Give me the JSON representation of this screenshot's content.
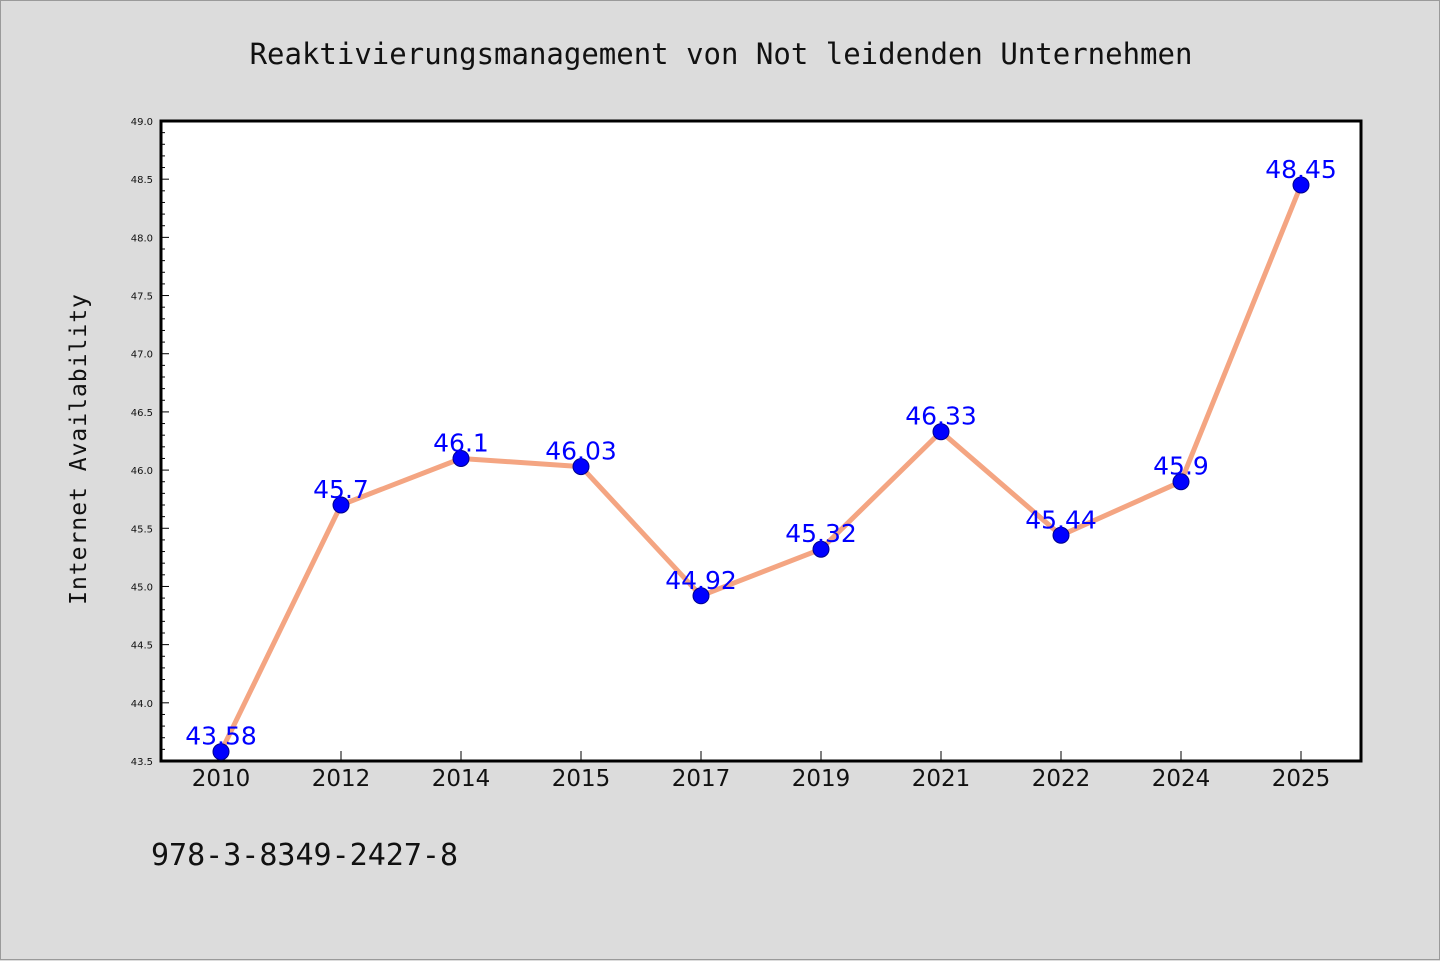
{
  "chart_data": {
    "type": "line",
    "title": "Reaktivierungsmanagement von Not leidenden Unternehmen",
    "xlabel": "",
    "ylabel": "Internet Availability",
    "categories": [
      "2010",
      "2012",
      "2014",
      "2015",
      "2017",
      "2019",
      "2021",
      "2022",
      "2024",
      "2025"
    ],
    "series": [
      {
        "values": [
          43.58,
          45.7,
          46.1,
          46.03,
          44.92,
          45.32,
          46.33,
          45.44,
          45.9,
          48.45
        ],
        "data_labels": [
          "43.58",
          "45.7",
          "46.1",
          "46.03",
          "44.92",
          "45.32",
          "46.33",
          "45.44",
          "45.9",
          "48.45"
        ]
      }
    ],
    "ylim": [
      43.5,
      49.0
    ],
    "yticks": [
      "43.5",
      "44.0",
      "44.5",
      "45.0",
      "45.5",
      "46.0",
      "46.5",
      "47.0",
      "47.5",
      "48.0",
      "48.5",
      "49.0"
    ],
    "grid": false,
    "line_color": "#f4a582",
    "marker_color": "#0000ff",
    "label_color": "#0000ff"
  },
  "footer": {
    "isbn": "978-3-8349-2427-8"
  }
}
